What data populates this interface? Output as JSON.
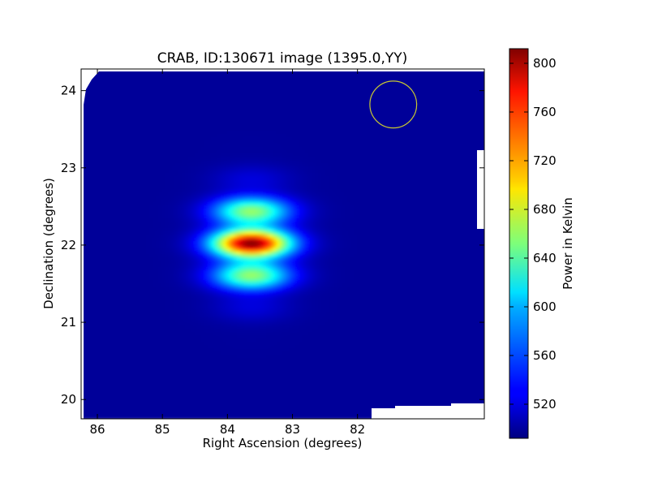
{
  "chart_data": {
    "type": "heatmap",
    "title": "CRAB, ID:130671 image (1395.0,YY)",
    "xlabel": "Right Ascension (degrees)",
    "ylabel": "Declination (degrees)",
    "colorbar_label": "Power in Kelvin",
    "x_reversed": true,
    "xlim": [
      86.25,
      80.05
    ],
    "ylim": [
      19.75,
      24.28
    ],
    "x_ticks": [
      86,
      85,
      84,
      83,
      82
    ],
    "y_ticks": [
      20,
      21,
      22,
      23,
      24
    ],
    "colorbar_range": [
      492,
      812
    ],
    "colorbar_ticks": [
      520,
      560,
      600,
      640,
      680,
      720,
      760,
      800
    ],
    "colormap": "jet",
    "background_level": 500,
    "sources": [
      {
        "ra": 83.63,
        "dec": 22.02,
        "peak": 812,
        "sigma_ra": 0.42,
        "sigma_dec": 0.38
      }
    ],
    "beam_circle": {
      "ra": 81.45,
      "dec": 23.82,
      "radius_deg": 0.36,
      "color": "#c8c832"
    },
    "grid": false,
    "legend": "none"
  }
}
